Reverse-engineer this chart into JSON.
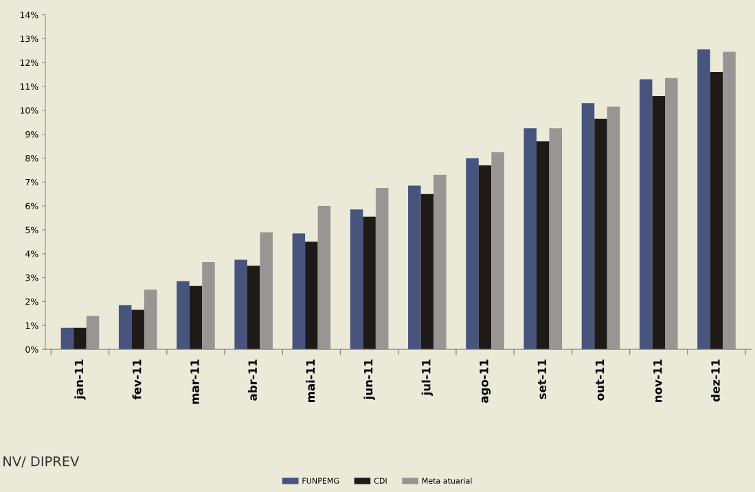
{
  "chart_data": {
    "type": "bar",
    "categories": [
      "jan-11",
      "fev-11",
      "mar-11",
      "abr-11",
      "mai-11",
      "jun-11",
      "jul-11",
      "ago-11",
      "set-11",
      "out-11",
      "nov-11",
      "dez-11"
    ],
    "series": [
      {
        "name": "FUNPEMG",
        "color": "#47557e",
        "values": [
          0.9,
          1.85,
          2.85,
          3.75,
          4.85,
          5.85,
          6.85,
          8.0,
          9.25,
          10.3,
          11.3,
          12.55
        ]
      },
      {
        "name": "CDI",
        "color": "#1f1a17",
        "values": [
          0.9,
          1.65,
          2.65,
          3.5,
          4.5,
          5.55,
          6.5,
          7.7,
          8.7,
          9.65,
          10.6,
          11.6
        ]
      },
      {
        "name": "Meta atuarial",
        "color": "#989693",
        "values": [
          1.4,
          2.5,
          3.65,
          4.9,
          6.0,
          6.75,
          7.3,
          8.25,
          9.25,
          10.15,
          11.35,
          12.45
        ]
      }
    ],
    "ylim": [
      0,
      14
    ],
    "yticks": [
      {
        "value": 0,
        "label": "0%"
      },
      {
        "value": 1,
        "label": "1%"
      },
      {
        "value": 2,
        "label": "2%"
      },
      {
        "value": 3,
        "label": "3%"
      },
      {
        "value": 4,
        "label": "4%"
      },
      {
        "value": 5,
        "label": "5%"
      },
      {
        "value": 6,
        "label": "6%"
      },
      {
        "value": 7,
        "label": "7%"
      },
      {
        "value": 8,
        "label": "8%"
      },
      {
        "value": 9,
        "label": "9%"
      },
      {
        "value": 10,
        "label": "10%"
      },
      {
        "value": 11,
        "label": "11%"
      },
      {
        "value": 12,
        "label": "12%"
      },
      {
        "value": 13,
        "label": "13%"
      },
      {
        "value": 14,
        "label": "14%"
      }
    ],
    "grid": false,
    "legend": "bottom",
    "annotations": [
      "NV/ DIPREV"
    ]
  }
}
